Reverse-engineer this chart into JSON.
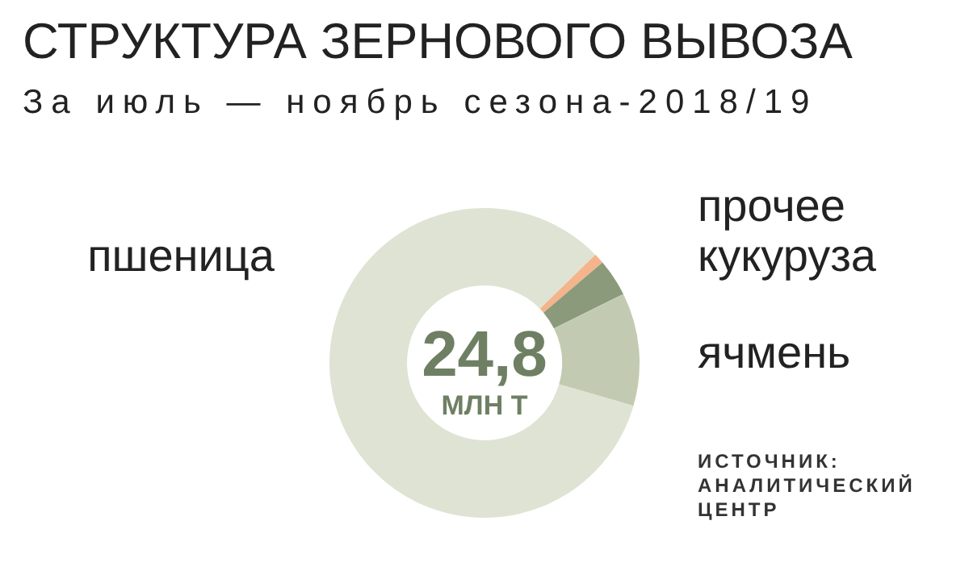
{
  "chart_data": {
    "type": "donut",
    "title": "СТРУКТУРА ЗЕРНОВОГО ВЫВОЗА",
    "subtitle": "За июль — ноябрь сезона-2018/19",
    "categories": [
      "прочее",
      "кукуруза",
      "ячмень",
      "пшеница"
    ],
    "values": [
      1.1,
      3.9,
      11.8,
      83.2
    ],
    "colors": [
      "#f4b48c",
      "#8a9a7b",
      "#c2cbb1",
      "#dfe3d3"
    ],
    "annotations": [
      "24,8",
      "МЛН Т",
      "ИСТОЧНИК: АНАЛИТИЧЕСКИЙ ЦЕНТР"
    ]
  }
}
